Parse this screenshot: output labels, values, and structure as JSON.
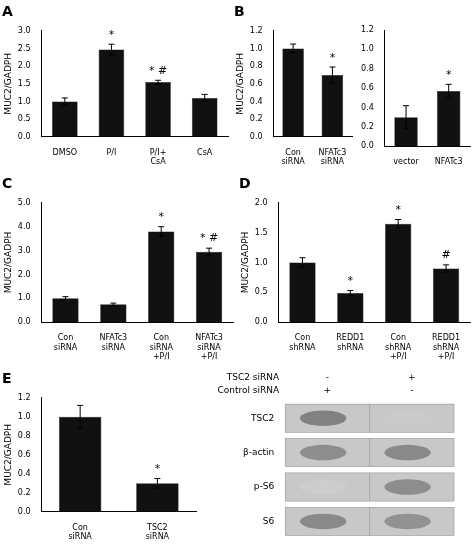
{
  "chart_data": [
    {
      "type": "bar",
      "title": "A",
      "categories": [
        "DMSO",
        "P/I",
        "P/I+\nCsA",
        "CsA"
      ],
      "values": [
        1.0,
        2.47,
        1.55,
        1.1
      ],
      "errors": [
        0.1,
        0.15,
        0.05,
        0.1
      ],
      "color": "#111111",
      "ylabel": "MUC2/GADPH",
      "ylim": [
        0,
        3.0
      ],
      "yticks": [
        {
          "value": 0,
          "label": "0.0"
        },
        0.5,
        {
          "value": 1.0,
          "label": "1.0"
        },
        1.5,
        {
          "value": 2.0,
          "label": "2.0"
        },
        2.5,
        {
          "value": 3.0,
          "label": "3.0"
        }
      ],
      "grid": false,
      "annotations": [
        {
          "category": "P/I",
          "text": "*"
        },
        {
          "category": "P/I+\nCsA",
          "text": "* #"
        }
      ]
    },
    {
      "type": "bar",
      "title": "B",
      "categories": [
        "Con\nsiRNA",
        "NFATc3\nsiRNA"
      ],
      "values": [
        1.0,
        0.7
      ],
      "errors": [
        0.05,
        0.09
      ],
      "color": "#111111",
      "ylabel": "MUC2/GADPH",
      "ylim": [
        0,
        1.2
      ],
      "yticks": [
        {
          "value": 0,
          "label": "0.0"
        },
        0.2,
        0.4,
        0.6,
        0.8,
        {
          "value": 1.0,
          "label": "1.0"
        },
        1.2
      ],
      "grid": false,
      "annotations": [
        {
          "category": "NFATc3\nsiRNA",
          "text": "*"
        }
      ]
    },
    {
      "type": "bar",
      "categories": [
        "vector",
        "NFATc3"
      ],
      "values": [
        0.3,
        0.57
      ],
      "errors": [
        0.12,
        0.07
      ],
      "color": "#111111",
      "ylim": [
        0,
        1.2
      ],
      "yticks": [
        {
          "value": 0,
          "label": "0.0"
        },
        0.2,
        0.4,
        0.6,
        0.8,
        {
          "value": 1.0,
          "label": "1.0"
        },
        1.2
      ],
      "grid": false,
      "annotations": [
        {
          "category": "NFATc3",
          "text": "*"
        }
      ]
    },
    {
      "type": "bar",
      "title": "C",
      "categories": [
        "Con\nsiRNA",
        "NFATc3\nsiRNA",
        "Con\nsiRNA\n+P/I",
        "NFATc3\nsiRNA\n+P/I"
      ],
      "values": [
        1.0,
        0.75,
        3.8,
        2.95
      ],
      "errors": [
        0.07,
        0.05,
        0.2,
        0.15
      ],
      "color": "#111111",
      "ylabel": "MUC2/GADPH",
      "ylim": [
        0,
        5.0
      ],
      "yticks": [
        {
          "value": 0,
          "label": "0.0"
        },
        {
          "value": 1.0,
          "label": "1.0"
        },
        {
          "value": 2.0,
          "label": "2.0"
        },
        {
          "value": 3.0,
          "label": "3.0"
        },
        {
          "value": 4.0,
          "label": "4.0"
        },
        {
          "value": 5.0,
          "label": "5.0"
        }
      ],
      "grid": false,
      "annotations": [
        {
          "category": "Con\nsiRNA\n+P/I",
          "text": "*"
        },
        {
          "category": "NFATc3\nsiRNA\n+P/I",
          "text": "* #"
        }
      ]
    },
    {
      "type": "bar",
      "title": "D",
      "categories": [
        "Con\nshRNA",
        "REDD1\nshRNA",
        "Con\nshRNA\n+P/I",
        "REDD1\nshRNA\n+P/I"
      ],
      "values": [
        1.0,
        0.49,
        1.65,
        0.9
      ],
      "errors": [
        0.08,
        0.04,
        0.07,
        0.06
      ],
      "color": "#111111",
      "ylabel": "MUC2/GADPH",
      "ylim": [
        0,
        2.0
      ],
      "yticks": [
        {
          "value": 0,
          "label": "0.0"
        },
        0.5,
        {
          "value": 1.0,
          "label": "1.0"
        },
        1.5,
        {
          "value": 2.0,
          "label": "2.0"
        }
      ],
      "grid": false,
      "annotations": [
        {
          "category": "REDD1\nshRNA",
          "text": "*"
        },
        {
          "category": "Con\nshRNA\n+P/I",
          "text": "*"
        },
        {
          "category": "REDD1\nshRNA\n+P/I",
          "text": "#"
        }
      ]
    },
    {
      "type": "bar",
      "title": "E",
      "categories": [
        "Con\nsiRNA",
        "TSC2\nsiRNA"
      ],
      "values": [
        1.0,
        0.3
      ],
      "errors": [
        0.12,
        0.05
      ],
      "color": "#111111",
      "ylabel": "MUC2/GADPH",
      "ylim": [
        0,
        1.2
      ],
      "yticks": [
        {
          "value": 0,
          "label": "0.0"
        },
        0.2,
        0.4,
        0.6,
        0.8,
        {
          "value": 1.0,
          "label": "1.0"
        },
        1.2
      ],
      "grid": false,
      "annotations": [
        {
          "category": "TSC2\nsiRNA",
          "text": "*"
        }
      ]
    },
    {
      "type": "blot",
      "categories": [
        "TSC2",
        "β-actin",
        "p-S6",
        "S6"
      ],
      "header": [
        {
          "name": "TSC2 siRNA",
          "values": [
            "-",
            "+"
          ]
        },
        {
          "name": "Control siRNA",
          "values": [
            "+",
            "-"
          ]
        }
      ],
      "cells": [
        [
          0.75,
          0.25
        ],
        [
          0.7,
          0.72
        ],
        [
          0.15,
          0.7
        ],
        [
          0.72,
          0.68
        ]
      ],
      "color": "#c8c8c8"
    }
  ]
}
